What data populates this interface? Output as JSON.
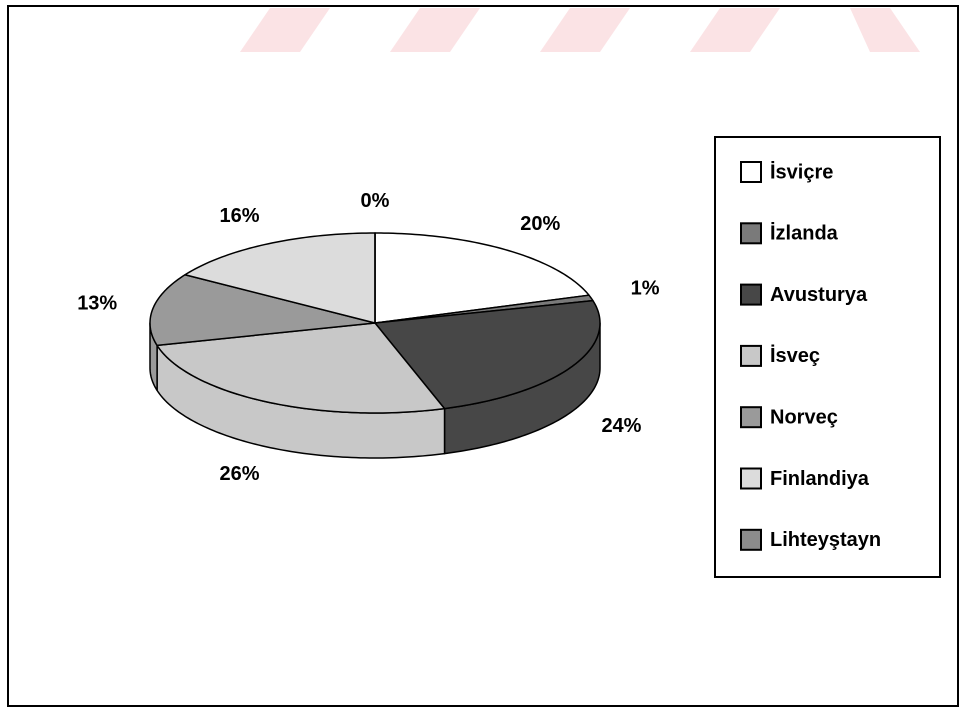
{
  "chart_data": {
    "type": "pie3d",
    "categories": [
      "İsviçre",
      "İzlanda",
      "Avusturya",
      "İsveç",
      "Norveç",
      "Finlandiya",
      "Lihteyştayn"
    ],
    "values": [
      20,
      1,
      24,
      26,
      13,
      16,
      0
    ],
    "value_labels": [
      "20%",
      "1%",
      "24%",
      "26%",
      "13%",
      "16%",
      "0%"
    ],
    "colors": [
      "#ffffff",
      "#7a7a7a",
      "#474747",
      "#c8c8c8",
      "#9a9a9a",
      "#dcdcdc",
      "#8c8c8c"
    ],
    "legend": "right"
  }
}
